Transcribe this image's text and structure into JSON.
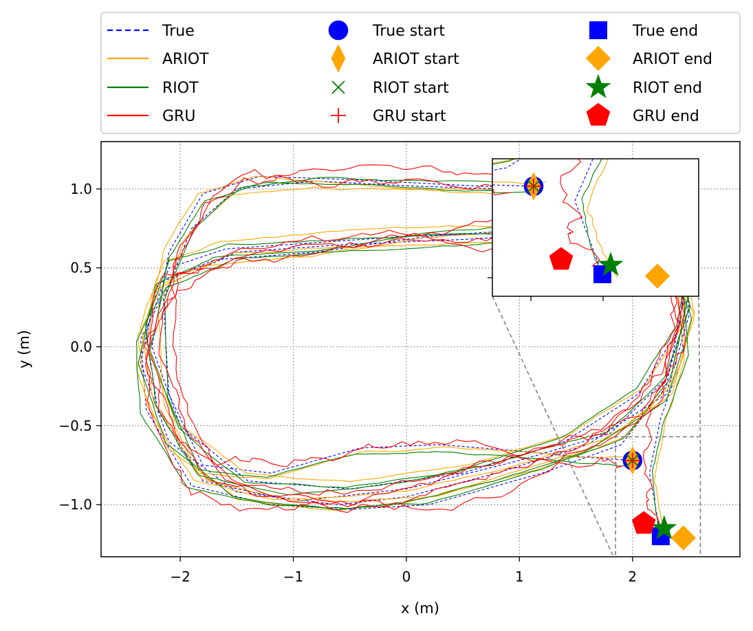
{
  "chart_data": {
    "type": "line",
    "title": "",
    "xlabel": "x (m)",
    "ylabel": "y (m)",
    "xlim": [
      -2.7,
      2.95
    ],
    "ylim": [
      -1.33,
      1.3
    ],
    "xticks": [
      -2,
      -1,
      0,
      1,
      2
    ],
    "yticks": [
      -1.0,
      -0.5,
      0.0,
      0.5,
      1.0
    ],
    "xtick_labels": [
      "−2",
      "−1",
      "0",
      "1",
      "2"
    ],
    "ytick_labels": [
      "−1.0",
      "−0.5",
      "0.0",
      "0.5",
      "1.0"
    ],
    "grid": "dotted",
    "legend_position": "above plot, 3 columns",
    "series": [
      {
        "name": "True",
        "color": "#0000ff",
        "style": "dashed",
        "offset": 0.0,
        "noise": 0.0
      },
      {
        "name": "ARIOT",
        "color": "#ffa500",
        "style": "solid",
        "offset": 0.05,
        "noise": 0.006
      },
      {
        "name": "RIOT",
        "color": "#008000",
        "style": "solid",
        "offset": 0.04,
        "noise": 0.005
      },
      {
        "name": "GRU",
        "color": "#ff0000",
        "style": "solid",
        "offset": 0.06,
        "noise": 0.03
      }
    ],
    "true_path": [
      [
        2.0,
        -0.72
      ],
      [
        1.6,
        -0.7
      ],
      [
        1.0,
        -0.66
      ],
      [
        0.3,
        -0.62
      ],
      [
        -0.4,
        -0.64
      ],
      [
        -1.2,
        -0.8
      ],
      [
        -1.8,
        -0.75
      ],
      [
        -2.1,
        -0.3
      ],
      [
        -2.15,
        0.3
      ],
      [
        -1.9,
        0.75
      ],
      [
        -1.5,
        1.0
      ],
      [
        -0.8,
        1.05
      ],
      [
        0.0,
        1.02
      ],
      [
        0.8,
        1.0
      ],
      [
        1.5,
        0.98
      ],
      [
        2.2,
        0.9
      ],
      [
        2.5,
        0.55
      ],
      [
        2.4,
        0.1
      ],
      [
        2.05,
        -0.3
      ],
      [
        1.4,
        -0.6
      ],
      [
        0.5,
        -0.8
      ],
      [
        -0.5,
        -0.9
      ],
      [
        -1.4,
        -0.85
      ],
      [
        -2.0,
        -0.5
      ],
      [
        -2.25,
        0.0
      ],
      [
        -2.1,
        0.6
      ],
      [
        -1.8,
        0.97
      ],
      [
        -1.3,
        1.08
      ],
      [
        -0.5,
        1.06
      ],
      [
        0.3,
        1.03
      ],
      [
        1.2,
        1.0
      ],
      [
        1.9,
        0.95
      ],
      [
        2.4,
        0.7
      ],
      [
        2.5,
        0.25
      ],
      [
        2.3,
        -0.2
      ],
      [
        1.8,
        -0.55
      ],
      [
        1.0,
        -0.72
      ],
      [
        0.0,
        -0.9
      ],
      [
        -1.0,
        -0.98
      ],
      [
        -1.8,
        -0.85
      ],
      [
        -2.2,
        -0.4
      ],
      [
        -2.3,
        0.1
      ],
      [
        -2.1,
        0.5
      ],
      [
        -1.6,
        0.62
      ],
      [
        -0.8,
        0.66
      ],
      [
        0.0,
        0.7
      ],
      [
        0.8,
        0.72
      ],
      [
        1.6,
        0.75
      ],
      [
        2.3,
        0.6
      ],
      [
        2.5,
        0.2
      ],
      [
        2.3,
        -0.3
      ],
      [
        1.6,
        -0.62
      ],
      [
        0.8,
        -0.8
      ],
      [
        0.0,
        -0.95
      ],
      [
        -0.6,
        -1.0
      ],
      [
        -1.5,
        -0.92
      ],
      [
        -2.1,
        -0.6
      ],
      [
        -2.35,
        -0.1
      ],
      [
        -2.2,
        0.4
      ],
      [
        -1.7,
        0.55
      ],
      [
        -0.8,
        0.6
      ],
      [
        0.2,
        0.7
      ],
      [
        1.2,
        0.75
      ],
      [
        2.1,
        0.72
      ],
      [
        2.45,
        0.3
      ],
      [
        2.3,
        -0.25
      ],
      [
        1.9,
        -0.62
      ],
      [
        1.2,
        -0.8
      ],
      [
        0.2,
        -1.0
      ],
      [
        -0.5,
        -1.03
      ],
      [
        -1.2,
        -1.0
      ],
      [
        -1.9,
        -0.88
      ],
      [
        -2.3,
        -0.4
      ],
      [
        -2.35,
        0.05
      ],
      [
        -2.1,
        0.4
      ],
      [
        -1.5,
        0.6
      ],
      [
        -0.5,
        0.65
      ],
      [
        0.5,
        0.68
      ],
      [
        1.4,
        0.72
      ],
      [
        2.0,
        0.7
      ],
      [
        2.4,
        0.4
      ],
      [
        2.45,
        -0.05
      ],
      [
        2.25,
        -0.45
      ],
      [
        2.15,
        -0.8
      ],
      [
        2.2,
        -1.0
      ],
      [
        2.25,
        -1.2
      ]
    ],
    "markers": [
      {
        "label": "True start",
        "series": "True",
        "kind": "circle",
        "x": 2.0,
        "y": -0.72,
        "color": "#0000ff"
      },
      {
        "label": "ARIOT start",
        "series": "ARIOT",
        "kind": "thin_diamond",
        "x": 2.0,
        "y": -0.72,
        "color": "#ffa500"
      },
      {
        "label": "RIOT start",
        "series": "RIOT",
        "kind": "x",
        "x": 2.0,
        "y": -0.72,
        "color": "#008000"
      },
      {
        "label": "GRU start",
        "series": "GRU",
        "kind": "plus",
        "x": 2.0,
        "y": -0.72,
        "color": "#ff0000"
      },
      {
        "label": "True end",
        "series": "True",
        "kind": "square",
        "x": 2.25,
        "y": -1.2,
        "color": "#0000ff"
      },
      {
        "label": "ARIOT end",
        "series": "ARIOT",
        "kind": "diamond",
        "x": 2.45,
        "y": -1.21,
        "color": "#ffa500"
      },
      {
        "label": "RIOT end",
        "series": "RIOT",
        "kind": "star",
        "x": 2.28,
        "y": -1.15,
        "color": "#008000"
      },
      {
        "label": "GRU end",
        "series": "GRU",
        "kind": "pentagon",
        "x": 2.1,
        "y": -1.12,
        "color": "#ff0000"
      }
    ],
    "legend_columns": [
      [
        "True",
        "ARIOT",
        "RIOT",
        "GRU"
      ],
      [
        "True start",
        "ARIOT start",
        "RIOT start",
        "GRU start"
      ],
      [
        "True end",
        "ARIOT end",
        "RIOT end",
        "GRU end"
      ]
    ],
    "inset": {
      "xlim": [
        1.85,
        2.6
      ],
      "ylim": [
        -1.32,
        -0.57
      ],
      "position": "top-right, linked to bottom-right region"
    }
  }
}
